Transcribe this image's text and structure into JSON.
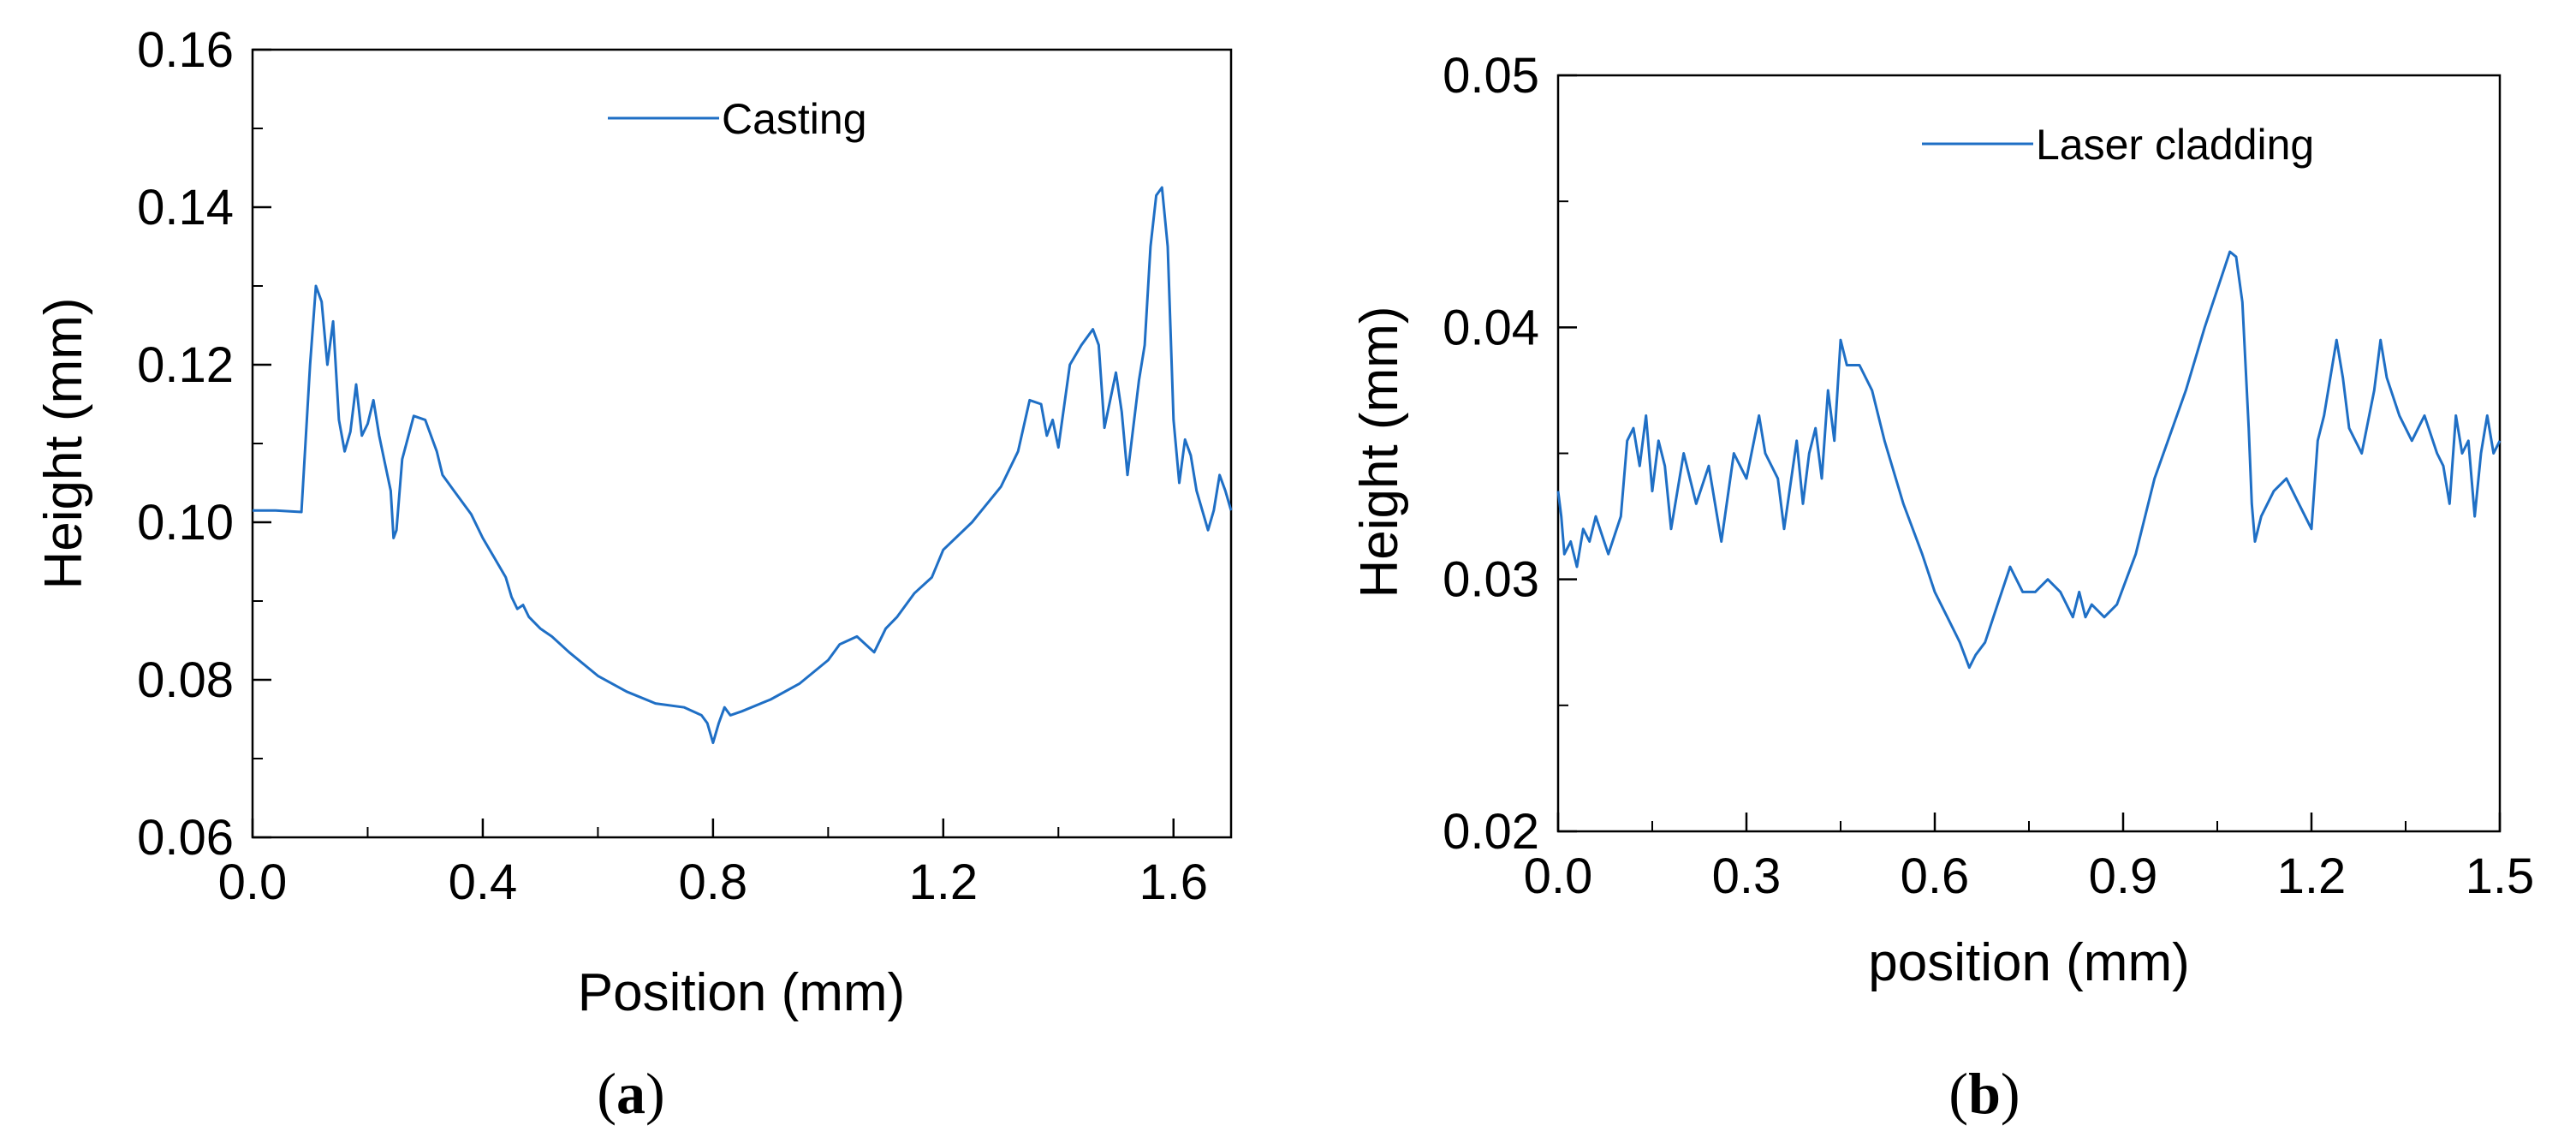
{
  "chart_data": [
    {
      "type": "line",
      "panel": "a",
      "xlabel": "Position (mm)",
      "ylabel": "Height (mm)",
      "xlim": [
        0.0,
        1.7
      ],
      "ylim": [
        0.06,
        0.16
      ],
      "x_ticks": [
        0.0,
        0.4,
        0.8,
        1.2,
        1.6
      ],
      "x_tick_labels": [
        "0.0",
        "0.4",
        "0.8",
        "1.2",
        "1.6"
      ],
      "y_ticks": [
        0.06,
        0.08,
        0.1,
        0.12,
        0.14,
        0.16
      ],
      "y_tick_labels": [
        "0.06",
        "0.08",
        "0.10",
        "0.12",
        "0.14",
        "0.16"
      ],
      "legend_placement": "top-center",
      "color": "#1f6fc5",
      "series": [
        {
          "name": "Casting",
          "x": [
            0.0,
            0.04,
            0.085,
            0.1,
            0.11,
            0.12,
            0.13,
            0.14,
            0.15,
            0.16,
            0.17,
            0.18,
            0.19,
            0.2,
            0.21,
            0.22,
            0.23,
            0.24,
            0.245,
            0.25,
            0.26,
            0.28,
            0.3,
            0.32,
            0.33,
            0.35,
            0.38,
            0.4,
            0.42,
            0.44,
            0.45,
            0.46,
            0.47,
            0.48,
            0.5,
            0.52,
            0.55,
            0.6,
            0.65,
            0.7,
            0.75,
            0.78,
            0.79,
            0.8,
            0.81,
            0.82,
            0.83,
            0.85,
            0.9,
            0.95,
            1.0,
            1.02,
            1.05,
            1.08,
            1.1,
            1.12,
            1.15,
            1.18,
            1.2,
            1.25,
            1.3,
            1.33,
            1.35,
            1.37,
            1.38,
            1.39,
            1.4,
            1.42,
            1.44,
            1.46,
            1.47,
            1.48,
            1.5,
            1.51,
            1.52,
            1.53,
            1.54,
            1.55,
            1.56,
            1.57,
            1.58,
            1.59,
            1.6,
            1.61,
            1.62,
            1.63,
            1.64,
            1.65,
            1.66,
            1.67,
            1.68,
            1.69,
            1.7
          ],
          "y": [
            0.1015,
            0.1015,
            0.1013,
            0.12,
            0.13,
            0.128,
            0.12,
            0.1255,
            0.113,
            0.109,
            0.1115,
            0.1175,
            0.111,
            0.1125,
            0.1155,
            0.111,
            0.1075,
            0.104,
            0.098,
            0.099,
            0.108,
            0.1135,
            0.113,
            0.109,
            0.106,
            0.104,
            0.101,
            0.098,
            0.0955,
            0.093,
            0.0905,
            0.089,
            0.0895,
            0.088,
            0.0865,
            0.0855,
            0.0835,
            0.0805,
            0.0785,
            0.077,
            0.0765,
            0.0755,
            0.0745,
            0.072,
            0.0745,
            0.0765,
            0.0755,
            0.076,
            0.0775,
            0.0795,
            0.0825,
            0.0845,
            0.0855,
            0.0835,
            0.0865,
            0.088,
            0.091,
            0.093,
            0.0965,
            0.1,
            0.1045,
            0.109,
            0.1155,
            0.115,
            0.111,
            0.113,
            0.1095,
            0.12,
            0.1225,
            0.1245,
            0.1225,
            0.112,
            0.119,
            0.114,
            0.106,
            0.112,
            0.118,
            0.1225,
            0.135,
            0.1415,
            0.1425,
            0.135,
            0.113,
            0.105,
            0.1105,
            0.1085,
            0.104,
            0.1015,
            0.099,
            0.1015,
            0.106,
            0.104,
            0.1015
          ]
        }
      ]
    },
    {
      "type": "line",
      "panel": "b",
      "xlabel": "position (mm)",
      "ylabel": "Height (mm)",
      "xlim": [
        0.0,
        1.5
      ],
      "ylim": [
        0.02,
        0.05
      ],
      "x_ticks": [
        0.0,
        0.3,
        0.6,
        0.9,
        1.2,
        1.5
      ],
      "x_tick_labels": [
        "0.0",
        "0.3",
        "0.6",
        "0.9",
        "1.2",
        "1.5"
      ],
      "y_ticks": [
        0.02,
        0.03,
        0.04,
        0.05
      ],
      "y_tick_labels": [
        "0.02",
        "0.03",
        "0.04",
        "0.05"
      ],
      "legend_placement": "top-center",
      "color": "#1f6fc5",
      "series": [
        {
          "name": "Laser cladding",
          "x": [
            0.0,
            0.005,
            0.01,
            0.02,
            0.03,
            0.04,
            0.05,
            0.06,
            0.08,
            0.1,
            0.11,
            0.12,
            0.13,
            0.14,
            0.15,
            0.16,
            0.17,
            0.18,
            0.2,
            0.22,
            0.24,
            0.26,
            0.28,
            0.3,
            0.32,
            0.33,
            0.35,
            0.36,
            0.38,
            0.39,
            0.4,
            0.41,
            0.42,
            0.43,
            0.44,
            0.45,
            0.46,
            0.48,
            0.5,
            0.52,
            0.55,
            0.58,
            0.6,
            0.62,
            0.64,
            0.655,
            0.665,
            0.68,
            0.7,
            0.72,
            0.74,
            0.76,
            0.78,
            0.8,
            0.82,
            0.83,
            0.84,
            0.85,
            0.87,
            0.89,
            0.92,
            0.95,
            1.0,
            1.03,
            1.05,
            1.07,
            1.08,
            1.09,
            1.1,
            1.105,
            1.11,
            1.12,
            1.14,
            1.16,
            1.18,
            1.2,
            1.21,
            1.22,
            1.24,
            1.25,
            1.26,
            1.28,
            1.3,
            1.31,
            1.32,
            1.34,
            1.36,
            1.38,
            1.4,
            1.41,
            1.42,
            1.43,
            1.44,
            1.45,
            1.46,
            1.47,
            1.48,
            1.49,
            1.5
          ],
          "y": [
            0.0335,
            0.0325,
            0.031,
            0.0315,
            0.0305,
            0.032,
            0.0315,
            0.0325,
            0.031,
            0.0325,
            0.0355,
            0.036,
            0.0345,
            0.0365,
            0.0335,
            0.0355,
            0.0345,
            0.032,
            0.035,
            0.033,
            0.0345,
            0.0315,
            0.035,
            0.034,
            0.0365,
            0.035,
            0.034,
            0.032,
            0.0355,
            0.033,
            0.035,
            0.036,
            0.034,
            0.0375,
            0.0355,
            0.0395,
            0.0385,
            0.0385,
            0.0375,
            0.0355,
            0.033,
            0.031,
            0.0295,
            0.0285,
            0.0275,
            0.0265,
            0.027,
            0.0275,
            0.029,
            0.0305,
            0.0295,
            0.0295,
            0.03,
            0.0295,
            0.0285,
            0.0295,
            0.0285,
            0.029,
            0.0285,
            0.029,
            0.031,
            0.034,
            0.0375,
            0.04,
            0.0415,
            0.043,
            0.0428,
            0.041,
            0.036,
            0.033,
            0.0315,
            0.0325,
            0.0335,
            0.034,
            0.033,
            0.032,
            0.0355,
            0.0365,
            0.0395,
            0.038,
            0.036,
            0.035,
            0.0375,
            0.0395,
            0.038,
            0.0365,
            0.0355,
            0.0365,
            0.035,
            0.0345,
            0.033,
            0.0365,
            0.035,
            0.0355,
            0.0325,
            0.035,
            0.0365,
            0.035,
            0.0355
          ]
        }
      ]
    }
  ],
  "panel_labels": [
    {
      "open": "(",
      "letter": "a",
      "close": ")"
    },
    {
      "open": "(",
      "letter": "b",
      "close": ")"
    }
  ]
}
